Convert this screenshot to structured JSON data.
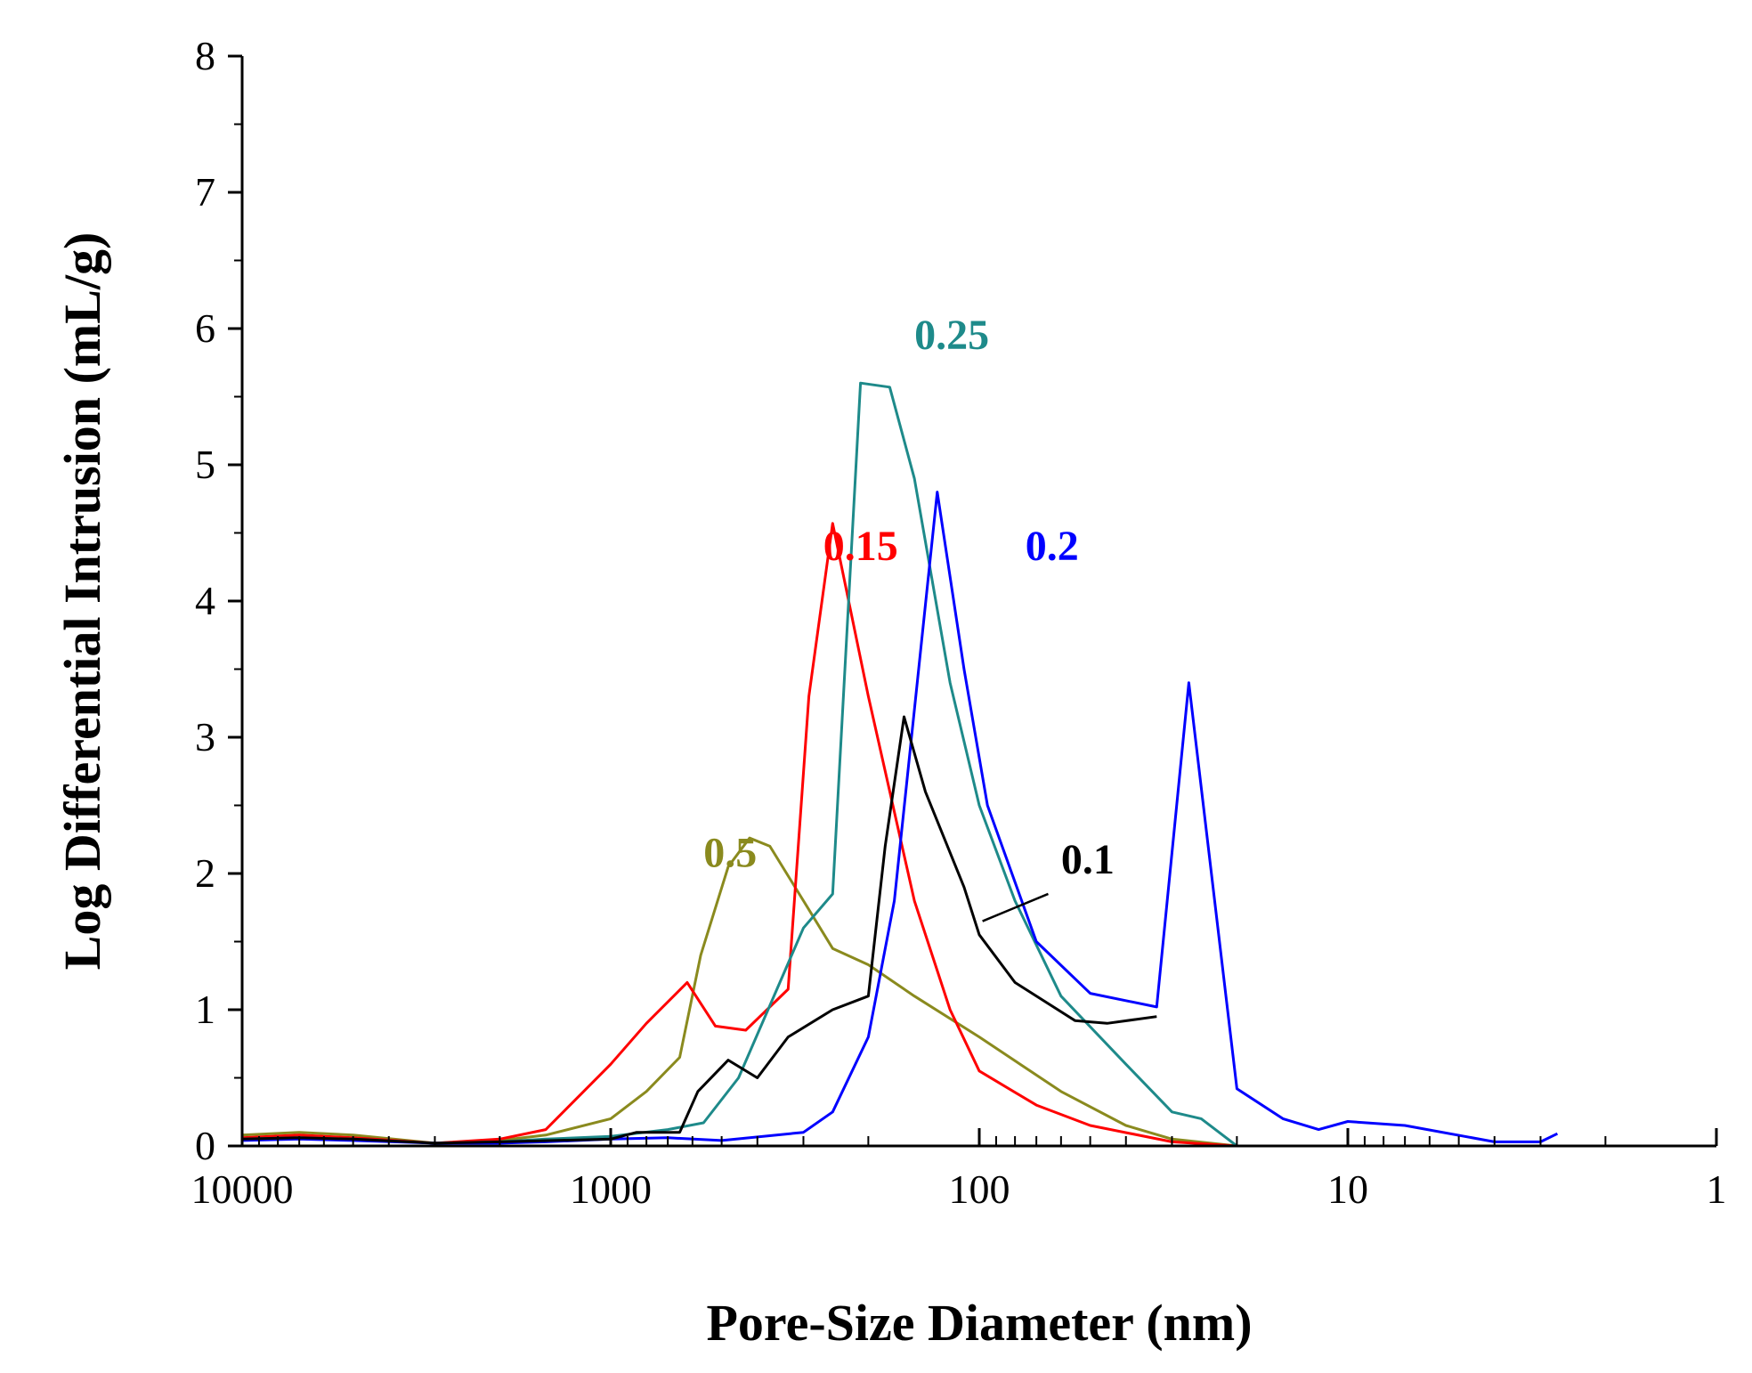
{
  "chart_data": {
    "type": "line",
    "title": "",
    "xlabel": "Pore-Size Diameter (nm)",
    "ylabel": "Log Differential Intrusion (mL/g)",
    "xscale": "log",
    "xreversed": true,
    "xlim": [
      10000,
      1
    ],
    "ylim": [
      0,
      8
    ],
    "grid": false,
    "x_ticks": [
      {
        "value": 10000,
        "label": "10000"
      },
      {
        "value": 1000,
        "label": "1000"
      },
      {
        "value": 100,
        "label": "100"
      },
      {
        "value": 10,
        "label": "10"
      },
      {
        "value": 1,
        "label": "1"
      }
    ],
    "y_ticks": [
      {
        "value": 0,
        "label": "0"
      },
      {
        "value": 1,
        "label": "1"
      },
      {
        "value": 2,
        "label": "2"
      },
      {
        "value": 3,
        "label": "3"
      },
      {
        "value": 4,
        "label": "4"
      },
      {
        "value": 5,
        "label": "5"
      },
      {
        "value": 6,
        "label": "6"
      },
      {
        "value": 7,
        "label": "7"
      },
      {
        "value": 8,
        "label": "8"
      }
    ],
    "series": [
      {
        "name": "0.5",
        "color": "#8a8a1e",
        "label": {
          "text": "0.5",
          "x": 560,
          "y": 2.05
        },
        "points": [
          [
            10000,
            0.08
          ],
          [
            7000,
            0.1
          ],
          [
            5000,
            0.08
          ],
          [
            3000,
            0.02
          ],
          [
            2000,
            0.04
          ],
          [
            1500,
            0.08
          ],
          [
            1000,
            0.2
          ],
          [
            800,
            0.4
          ],
          [
            650,
            0.65
          ],
          [
            570,
            1.4
          ],
          [
            480,
            2.05
          ],
          [
            420,
            2.26
          ],
          [
            370,
            2.2
          ],
          [
            300,
            1.8
          ],
          [
            250,
            1.45
          ],
          [
            200,
            1.33
          ],
          [
            150,
            1.1
          ],
          [
            100,
            0.8
          ],
          [
            60,
            0.4
          ],
          [
            40,
            0.15
          ],
          [
            30,
            0.05
          ],
          [
            20,
            0.0
          ],
          [
            5,
            0.0
          ]
        ]
      },
      {
        "name": "0.15",
        "color": "#ff0000",
        "label": {
          "text": "0.15",
          "x": 265,
          "y": 4.3
        },
        "points": [
          [
            10000,
            0.06
          ],
          [
            7000,
            0.08
          ],
          [
            5000,
            0.06
          ],
          [
            3000,
            0.02
          ],
          [
            2000,
            0.05
          ],
          [
            1500,
            0.12
          ],
          [
            1000,
            0.6
          ],
          [
            800,
            0.9
          ],
          [
            620,
            1.2
          ],
          [
            520,
            0.88
          ],
          [
            430,
            0.85
          ],
          [
            330,
            1.15
          ],
          [
            290,
            3.3
          ],
          [
            250,
            4.57
          ],
          [
            200,
            3.3
          ],
          [
            150,
            1.8
          ],
          [
            120,
            1.0
          ],
          [
            100,
            0.55
          ],
          [
            70,
            0.3
          ],
          [
            50,
            0.15
          ],
          [
            30,
            0.03
          ],
          [
            20,
            0.0
          ],
          [
            5,
            0.0
          ]
        ]
      },
      {
        "name": "0.25",
        "color": "#1e8a8a",
        "label": {
          "text": "0.25",
          "x": 150,
          "y": 5.85
        },
        "points": [
          [
            10000,
            0.05
          ],
          [
            7000,
            0.06
          ],
          [
            5000,
            0.05
          ],
          [
            3000,
            0.02
          ],
          [
            2000,
            0.03
          ],
          [
            1500,
            0.05
          ],
          [
            1000,
            0.07
          ],
          [
            700,
            0.12
          ],
          [
            560,
            0.17
          ],
          [
            450,
            0.5
          ],
          [
            300,
            1.6
          ],
          [
            250,
            1.85
          ],
          [
            210,
            5.6
          ],
          [
            175,
            5.57
          ],
          [
            150,
            4.9
          ],
          [
            120,
            3.4
          ],
          [
            100,
            2.5
          ],
          [
            80,
            1.8
          ],
          [
            60,
            1.1
          ],
          [
            40,
            0.6
          ],
          [
            30,
            0.25
          ],
          [
            25,
            0.2
          ],
          [
            20,
            0.0
          ],
          [
            5,
            0.0
          ]
        ]
      },
      {
        "name": "0.2",
        "color": "#0000ff",
        "label": {
          "text": "0.2",
          "x": 75,
          "y": 4.3
        },
        "points": [
          [
            10000,
            0.04
          ],
          [
            7000,
            0.05
          ],
          [
            5000,
            0.04
          ],
          [
            3000,
            0.02
          ],
          [
            2000,
            0.02
          ],
          [
            1500,
            0.03
          ],
          [
            1000,
            0.05
          ],
          [
            700,
            0.06
          ],
          [
            500,
            0.04
          ],
          [
            300,
            0.1
          ],
          [
            250,
            0.25
          ],
          [
            200,
            0.8
          ],
          [
            170,
            1.8
          ],
          [
            150,
            3.2
          ],
          [
            130,
            4.8
          ],
          [
            110,
            3.5
          ],
          [
            95,
            2.5
          ],
          [
            70,
            1.5
          ],
          [
            50,
            1.12
          ],
          [
            33,
            1.02
          ],
          [
            27,
            3.4
          ],
          [
            20,
            0.42
          ],
          [
            15,
            0.2
          ],
          [
            12,
            0.12
          ],
          [
            10,
            0.18
          ],
          [
            7,
            0.15
          ],
          [
            4,
            0.03
          ],
          [
            3,
            0.03
          ],
          [
            2.7,
            0.09
          ]
        ]
      },
      {
        "name": "0.1",
        "color": "#000000",
        "label": {
          "text": "0.1",
          "x": 60,
          "y": 2.0
        },
        "points": [
          [
            10000,
            0.05
          ],
          [
            7000,
            0.06
          ],
          [
            5000,
            0.05
          ],
          [
            3000,
            0.02
          ],
          [
            2000,
            0.03
          ],
          [
            1000,
            0.05
          ],
          [
            850,
            0.1
          ],
          [
            650,
            0.1
          ],
          [
            580,
            0.4
          ],
          [
            480,
            0.63
          ],
          [
            400,
            0.5
          ],
          [
            330,
            0.8
          ],
          [
            250,
            1.0
          ],
          [
            200,
            1.1
          ],
          [
            180,
            2.2
          ],
          [
            160,
            3.15
          ],
          [
            140,
            2.6
          ],
          [
            110,
            1.9
          ],
          [
            100,
            1.55
          ],
          [
            80,
            1.2
          ],
          [
            55,
            0.92
          ],
          [
            45,
            0.9
          ],
          [
            33,
            0.95
          ]
        ],
        "leader": {
          "from": [
            98,
            1.65
          ],
          "to": [
            65,
            1.85
          ]
        }
      }
    ]
  }
}
